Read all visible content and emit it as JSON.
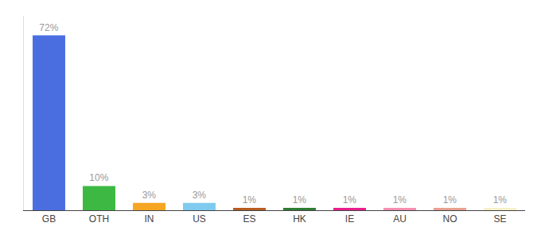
{
  "chart_data": {
    "type": "bar",
    "categories": [
      "GB",
      "OTH",
      "IN",
      "US",
      "ES",
      "HK",
      "IE",
      "AU",
      "NO",
      "SE"
    ],
    "values": [
      72,
      10,
      3,
      3,
      1,
      1,
      1,
      1,
      1,
      1
    ],
    "value_labels": [
      "72%",
      "10%",
      "3%",
      "3%",
      "1%",
      "1%",
      "1%",
      "1%",
      "1%",
      "1%"
    ],
    "colors": [
      "#4a6ee0",
      "#3db843",
      "#f5a623",
      "#7ecbef",
      "#b85c20",
      "#2e7d32",
      "#e91e8c",
      "#f48fb1",
      "#e8a090",
      "#f5f0c8"
    ],
    "ylim": [
      0,
      80
    ],
    "grid": false,
    "data_labels": true,
    "tick_labels": "x"
  }
}
